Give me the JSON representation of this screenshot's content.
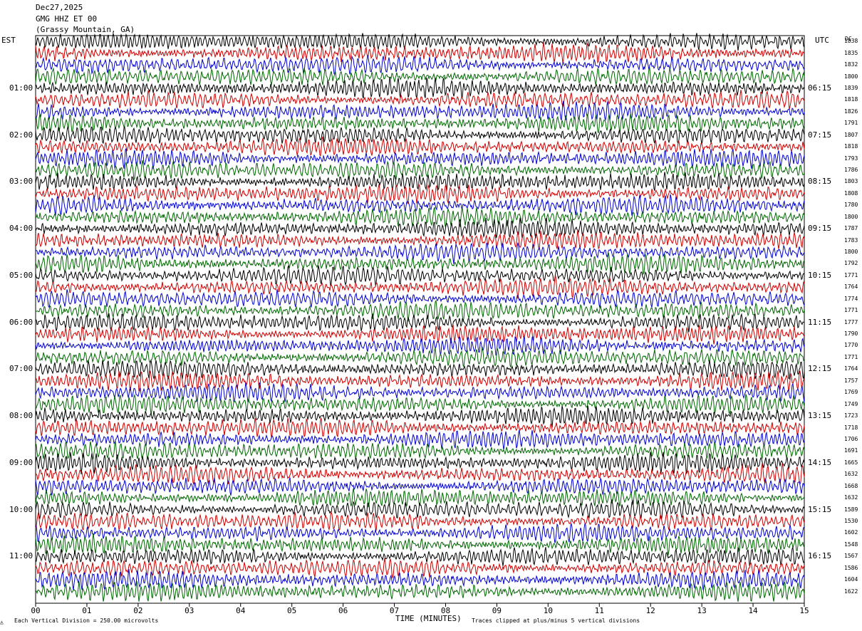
{
  "header": {
    "date": "Dec27,2025",
    "channel": "GMG HHZ ET 00",
    "station": "(Grassy Mountain, GA)"
  },
  "axes": {
    "left_zone": "EST",
    "right_zone": "UTC",
    "dc_label": "DC",
    "xlabel": "TIME (MINUTES)"
  },
  "footer": {
    "scale_note": "Each Vertical Division =  250.00 microvolts",
    "clip_note": "Traces clipped at plus/minus 5 vertical divisions"
  },
  "chart_data": {
    "type": "line",
    "title": "GMG HHZ ET 00 (Grassy Mountain, GA)",
    "xlabel": "TIME (MINUTES)",
    "xlim": [
      0,
      15
    ],
    "x_ticks": [
      "00",
      "01",
      "02",
      "03",
      "04",
      "05",
      "06",
      "07",
      "08",
      "09",
      "10",
      "11",
      "12",
      "13",
      "14",
      "15"
    ],
    "trace_colors": [
      "#000000",
      "#cc0000",
      "#0000cc",
      "#006600"
    ],
    "trace_count": 48,
    "minutes_per_trace": 15,
    "left_time_labels": [
      "01:00",
      "02:00",
      "03:00",
      "04:00",
      "05:00",
      "06:00",
      "07:00",
      "08:00",
      "09:00",
      "10:00",
      "11:00"
    ],
    "right_time_labels": [
      "06:15",
      "07:15",
      "08:15",
      "09:15",
      "10:15",
      "11:15",
      "12:15",
      "13:15",
      "14:15",
      "15:15",
      "16:15"
    ],
    "dc_offsets": [
      1838,
      1835,
      1832,
      1800,
      1839,
      1818,
      1826,
      1791,
      1807,
      1818,
      1793,
      1786,
      1803,
      1808,
      1780,
      1800,
      1787,
      1783,
      1800,
      1792,
      1771,
      1764,
      1774,
      1771,
      1777,
      1790,
      1770,
      1771,
      1764,
      1757,
      1769,
      1749,
      1723,
      1718,
      1706,
      1691,
      1665,
      1632,
      1668,
      1632,
      1589,
      1530,
      1602,
      1548,
      1567,
      1586,
      1604,
      1622
    ],
    "vertical_division_microvolts": 250.0,
    "clip_divisions": 5
  }
}
